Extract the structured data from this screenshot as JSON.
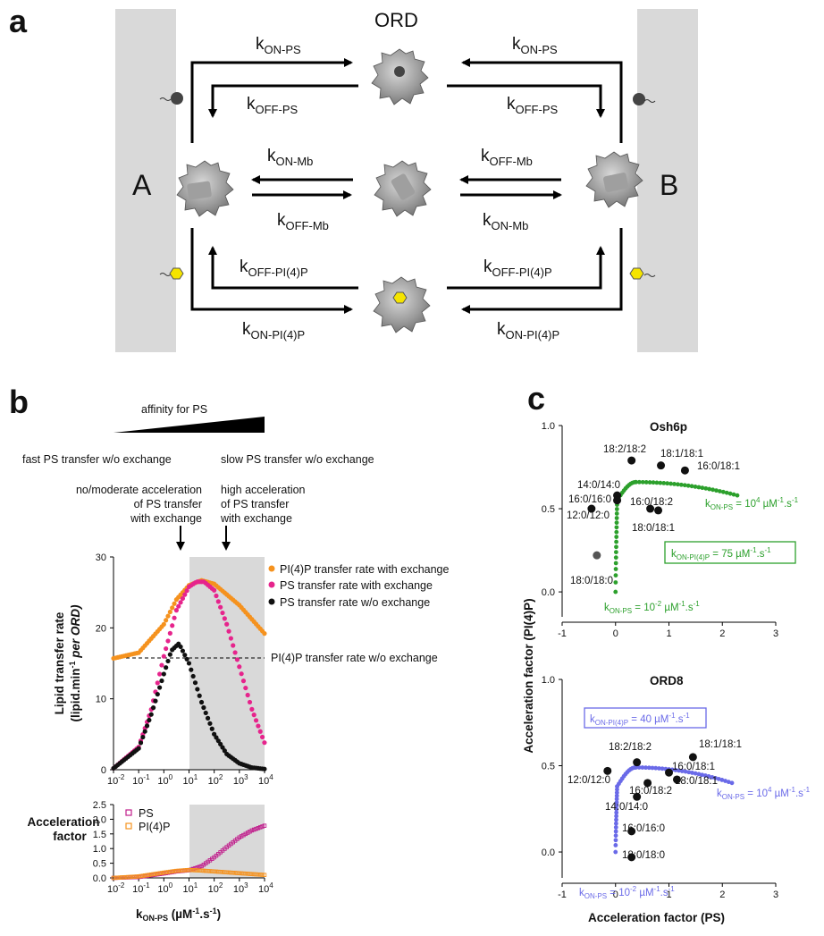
{
  "panels": {
    "a": "a",
    "b": "b",
    "c": "c"
  },
  "schemeA": {
    "ord_label": "ORD",
    "mem_left": "A",
    "mem_right": "B",
    "k": "k",
    "on_ps": "ON-PS",
    "off_ps": "OFF-PS",
    "on_mb": "ON-Mb",
    "off_mb": "OFF-Mb",
    "on_pi4p": "ON-PI(4)P",
    "off_pi4p": "OFF-PI(4)P"
  },
  "panelB": {
    "affinity_label": "affinity for PS",
    "fast_label": "fast PS transfer w/o exchange",
    "slow_label": "slow PS transfer w/o exchange",
    "nomod_l1": "no/moderate acceleration",
    "nomod_l2": "of PS transfer",
    "nomod_l3": "with exchange",
    "high_l1": "high acceleration",
    "high_l2": "of PS transfer",
    "high_l3": "with exchange",
    "dashed_label": "PI(4)P transfer rate w/o exchange",
    "ylabel_l1": "Lipid transfer rate",
    "ylabel_l2a": "(lipid.min",
    "ylabel_l2sup": "-1",
    "ylabel_l2b": " per ORD)",
    "accel_l1": "Acceleration",
    "accel_l2": "factor",
    "xlabel_main": "k",
    "xlabel_sub": "ON-PS",
    "xlabel_rest": " (µM",
    "xlabel_sup": "-1",
    "xlabel_end": ".s",
    "xlabel_sup2": "-1",
    "xlabel_close": ")"
  },
  "chart_data": [
    {
      "type": "scatter",
      "id": "b-top",
      "xscale": "log",
      "xlim": [
        0.01,
        10000
      ],
      "ylim": [
        0,
        30
      ],
      "yticks": [
        "0",
        "10",
        "20",
        "30"
      ],
      "xticks": [
        "10-2",
        "10-1",
        "100",
        "101",
        "102",
        "103",
        "104"
      ],
      "shaded_region": [
        10,
        10000
      ],
      "dashed_line": {
        "y": 15.7,
        "label": "PI(4)P transfer rate w/o exchange"
      },
      "series": [
        {
          "name": "PI(4)P transfer rate with exchange",
          "color": "#f5921e",
          "x_log10": [
            -2,
            -1,
            0,
            0.5,
            1,
            1.5,
            2,
            3,
            4
          ],
          "y": [
            15.7,
            16.5,
            20.5,
            24.0,
            26.0,
            26.7,
            26.2,
            23.2,
            19.2
          ]
        },
        {
          "name": "PS transfer rate with exchange",
          "color": "#e6248c",
          "x_log10": [
            -2,
            -1,
            -0.5,
            0,
            0.5,
            1,
            1.3,
            1.6,
            2,
            2.5,
            3,
            3.5,
            4
          ],
          "y": [
            0.2,
            3.2,
            8.5,
            16.0,
            22.5,
            25.8,
            26.5,
            26.5,
            25.3,
            20.5,
            14.5,
            8.5,
            3.8
          ]
        },
        {
          "name": "PS transfer rate w/o exchange",
          "color": "#111111",
          "x_log10": [
            -2,
            -1,
            -0.5,
            0,
            0.3,
            0.6,
            1,
            1.5,
            2,
            2.5,
            3,
            3.5,
            4
          ],
          "y": [
            0.2,
            3.0,
            7.8,
            13.5,
            16.8,
            17.8,
            15.0,
            9.5,
            5.0,
            2.2,
            0.9,
            0.3,
            0.1
          ]
        }
      ]
    },
    {
      "type": "scatter",
      "id": "b-bottom",
      "xscale": "log",
      "xlim": [
        0.01,
        10000
      ],
      "ylim": [
        0,
        2.5
      ],
      "yticks": [
        "0.0",
        "0.5",
        "1.0",
        "1.5",
        "2.0",
        "2.5"
      ],
      "xticks": [
        "10-2",
        "10-1",
        "100",
        "101",
        "102",
        "103",
        "104"
      ],
      "shaded_region": [
        10,
        10000
      ],
      "series": [
        {
          "name": "PS",
          "color": "#c01e8c",
          "x_log10": [
            -2,
            -1,
            0,
            0.5,
            1,
            1.5,
            2,
            2.5,
            3,
            3.5,
            4
          ],
          "y": [
            0.0,
            0.03,
            0.15,
            0.22,
            0.26,
            0.4,
            0.7,
            1.05,
            1.38,
            1.62,
            1.78
          ]
        },
        {
          "name": "PI(4)P",
          "color": "#f5921e",
          "x_log10": [
            -2,
            -1,
            0,
            0.5,
            1,
            1.5,
            2,
            3,
            4
          ],
          "y": [
            0.0,
            0.05,
            0.18,
            0.24,
            0.27,
            0.25,
            0.22,
            0.16,
            0.1
          ]
        }
      ]
    },
    {
      "type": "scatter",
      "id": "c-osh6p",
      "title": "Osh6p",
      "xlim": [
        -1,
        3
      ],
      "ylim": [
        -0.15,
        1.0
      ],
      "xticks": [
        "-1",
        "0",
        "1",
        "2",
        "3"
      ],
      "yticks": [
        "0.0",
        "0.5",
        "1.0"
      ],
      "points": [
        {
          "label": "18:2/18:2",
          "x": 0.3,
          "y": 0.79
        },
        {
          "label": "18:1/18:1",
          "x": 0.85,
          "y": 0.76
        },
        {
          "label": "16:0/18:1",
          "x": 1.3,
          "y": 0.73
        },
        {
          "label": "14:0/14:0",
          "x": 0.03,
          "y": 0.58
        },
        {
          "label": "16:0/16:0",
          "x": 0.03,
          "y": 0.55
        },
        {
          "label": "12:0/12:0",
          "x": -0.45,
          "y": 0.5
        },
        {
          "label": "16:0/18:2",
          "x": 0.65,
          "y": 0.5
        },
        {
          "label": "18:0/18:1",
          "x": 0.8,
          "y": 0.49
        },
        {
          "label": "18:0/18:0",
          "x": -0.35,
          "y": 0.22,
          "color": "#555555"
        }
      ],
      "curve_color": "#2ca02c",
      "curve_label_end": "kON-PS = 10^4 µM-1.s-1",
      "curve_label_start": "kON-PS = 10^-2 µM-1.s-1",
      "box_label": "kON-PI(4)P = 75 µM-1.s-1"
    },
    {
      "type": "scatter",
      "id": "c-ord8",
      "title": "ORD8",
      "xlim": [
        -1,
        3
      ],
      "ylim": [
        -0.15,
        1.0
      ],
      "xticks": [
        "-1",
        "0",
        "1",
        "2",
        "3"
      ],
      "yticks": [
        "0.0",
        "0.5",
        "1.0"
      ],
      "xlabel": "Acceleration factor (PS)",
      "ylabel": "Acceleration factor (PI(4)P)",
      "points": [
        {
          "label": "12:0/12:0",
          "x": -0.15,
          "y": 0.47
        },
        {
          "label": "18:2/18:2",
          "x": 0.4,
          "y": 0.52
        },
        {
          "label": "18:1/18:1",
          "x": 1.45,
          "y": 0.55
        },
        {
          "label": "16:0/18:1",
          "x": 1.0,
          "y": 0.46
        },
        {
          "label": "18:0/18:1",
          "x": 1.15,
          "y": 0.42
        },
        {
          "label": "16:0/18:2",
          "x": 0.6,
          "y": 0.4
        },
        {
          "label": "14:0/14:0",
          "x": 0.4,
          "y": 0.32
        },
        {
          "label": "16:0/16:0",
          "x": 0.3,
          "y": 0.12
        },
        {
          "label": "18:0/18:0",
          "x": 0.3,
          "y": -0.03
        }
      ],
      "curve_color": "#6a6ae8",
      "curve_label_end": "kON-PS = 10^4 µM-1.s-1",
      "curve_label_start": "kON-PS = 10^-2 µM-1.s-1",
      "box_label": "kON-PI(4)P = 40 µM-1.s-1"
    }
  ],
  "labels": {
    "legend_pi4p_with": "PI(4)P transfer rate with exchange",
    "legend_ps_with": "PS transfer rate with exchange",
    "legend_ps_without": "PS transfer rate w/o exchange",
    "legend_ps": "PS",
    "legend_pi4p": "PI(4)P",
    "c_title1": "Osh6p",
    "c_title2": "ORD8",
    "c_xlabel": "Acceleration factor (PS)",
    "c_ylabel": "Acceleration factor (PI(4)P)"
  }
}
